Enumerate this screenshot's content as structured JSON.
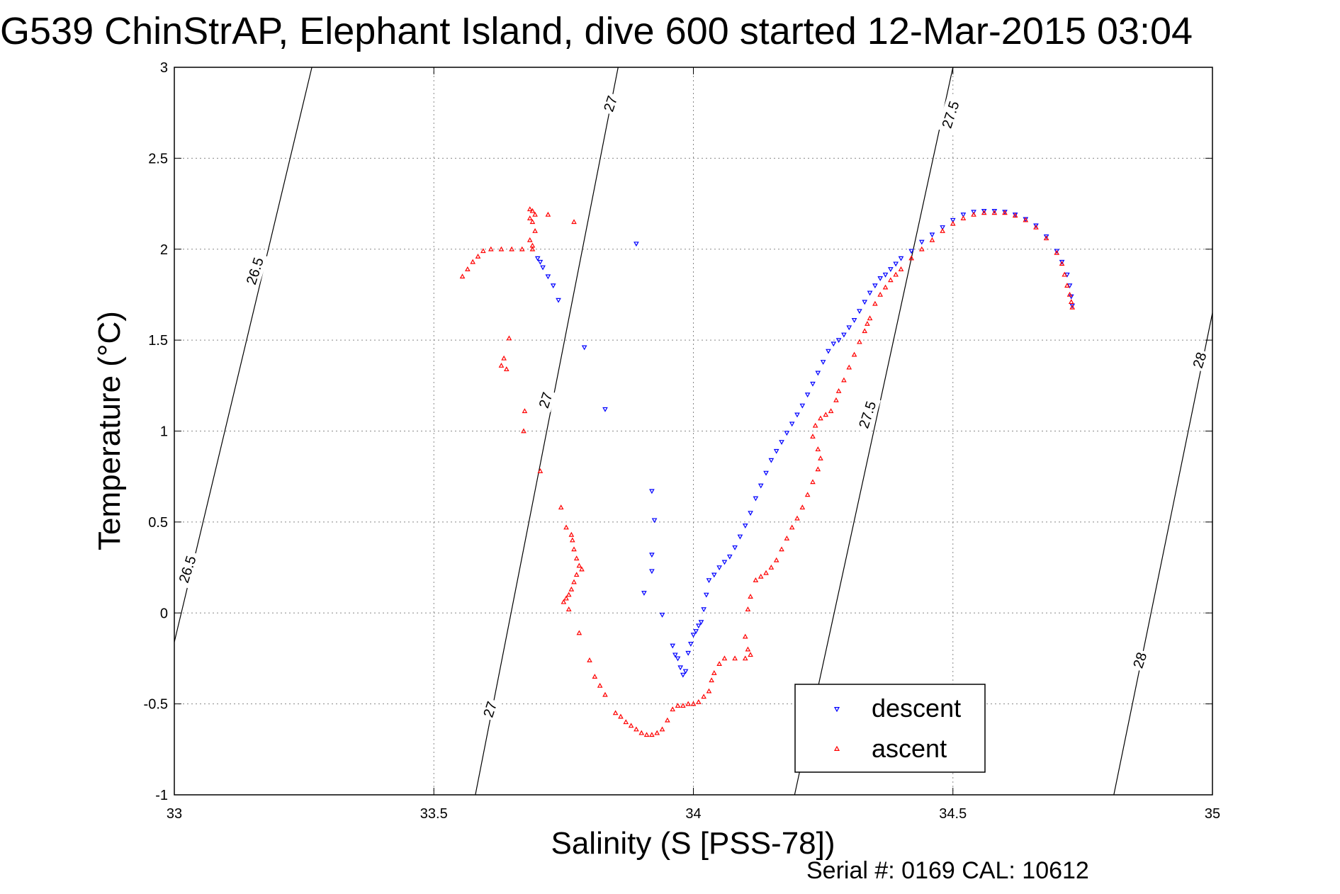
{
  "chart_data": {
    "type": "scatter",
    "title": "G539 ChinStrAP, Elephant Island, dive 600 started 12-Mar-2015 03:04",
    "xlabel": "Salinity (S [PSS-78])",
    "ylabel": "Temperature (°C)",
    "xlim": [
      33,
      35
    ],
    "ylim": [
      -1,
      3
    ],
    "xticks": [
      "33",
      "33.5",
      "34",
      "34.5",
      "35"
    ],
    "yticks": [
      "-1",
      "-0.5",
      "0",
      "0.5",
      "1",
      "1.5",
      "2",
      "2.5",
      "3"
    ],
    "grid": true,
    "legend_position": "bottom-right",
    "density_contours": [
      {
        "level": "26.5",
        "x": [
          33.0,
          33.265
        ],
        "y": [
          -0.16,
          3.0
        ]
      },
      {
        "level": "27",
        "x": [
          33.58,
          33.855
        ],
        "y": [
          -1.0,
          3.0
        ]
      },
      {
        "level": "27.5",
        "x": [
          34.195,
          34.5
        ],
        "y": [
          -1.0,
          3.0
        ]
      },
      {
        "level": "28",
        "x": [
          34.81,
          35.0
        ],
        "y": [
          -1.0,
          1.65
        ]
      }
    ],
    "contour_labels": [
      {
        "text": "26.5",
        "x": 33.155,
        "y": 1.88,
        "angle": -72
      },
      {
        "text": "26.5",
        "x": 33.025,
        "y": 0.24,
        "angle": -72
      },
      {
        "text": "27",
        "x": 33.84,
        "y": 2.8,
        "angle": -72
      },
      {
        "text": "27",
        "x": 33.715,
        "y": 1.17,
        "angle": -72
      },
      {
        "text": "27",
        "x": 33.608,
        "y": -0.53,
        "angle": -72
      },
      {
        "text": "27.5",
        "x": 34.495,
        "y": 2.74,
        "angle": -72
      },
      {
        "text": "27.5",
        "x": 34.335,
        "y": 1.09,
        "angle": -72
      },
      {
        "text": "28",
        "x": 34.975,
        "y": 1.39,
        "angle": -72
      },
      {
        "text": "28",
        "x": 34.86,
        "y": -0.26,
        "angle": -72
      }
    ],
    "series": [
      {
        "name": "descent",
        "color": "#0000ff",
        "marker": "triangle-down",
        "points": [
          [
            33.89,
            2.03
          ],
          [
            33.7,
            1.95
          ],
          [
            33.705,
            1.93
          ],
          [
            33.71,
            1.9
          ],
          [
            33.72,
            1.85
          ],
          [
            33.73,
            1.8
          ],
          [
            33.74,
            1.72
          ],
          [
            33.79,
            1.46
          ],
          [
            33.83,
            1.12
          ],
          [
            33.92,
            0.67
          ],
          [
            33.925,
            0.51
          ],
          [
            33.92,
            0.32
          ],
          [
            33.92,
            0.23
          ],
          [
            33.905,
            0.11
          ],
          [
            33.94,
            -0.01
          ],
          [
            33.96,
            -0.18
          ],
          [
            33.965,
            -0.23
          ],
          [
            33.97,
            -0.25
          ],
          [
            33.975,
            -0.3
          ],
          [
            33.98,
            -0.34
          ],
          [
            33.985,
            -0.32
          ],
          [
            33.99,
            -0.22
          ],
          [
            33.995,
            -0.17
          ],
          [
            34.0,
            -0.12
          ],
          [
            34.005,
            -0.1
          ],
          [
            34.01,
            -0.07
          ],
          [
            34.015,
            -0.05
          ],
          [
            34.02,
            0.02
          ],
          [
            34.025,
            0.1
          ],
          [
            34.03,
            0.18
          ],
          [
            34.04,
            0.21
          ],
          [
            34.05,
            0.25
          ],
          [
            34.06,
            0.28
          ],
          [
            34.07,
            0.31
          ],
          [
            34.08,
            0.36
          ],
          [
            34.09,
            0.42
          ],
          [
            34.1,
            0.48
          ],
          [
            34.11,
            0.55
          ],
          [
            34.12,
            0.63
          ],
          [
            34.13,
            0.7
          ],
          [
            34.14,
            0.77
          ],
          [
            34.15,
            0.84
          ],
          [
            34.16,
            0.89
          ],
          [
            34.17,
            0.94
          ],
          [
            34.18,
            0.99
          ],
          [
            34.19,
            1.04
          ],
          [
            34.2,
            1.09
          ],
          [
            34.21,
            1.14
          ],
          [
            34.22,
            1.2
          ],
          [
            34.23,
            1.26
          ],
          [
            34.24,
            1.32
          ],
          [
            34.25,
            1.38
          ],
          [
            34.26,
            1.44
          ],
          [
            34.27,
            1.48
          ],
          [
            34.28,
            1.5
          ],
          [
            34.29,
            1.53
          ],
          [
            34.3,
            1.57
          ],
          [
            34.31,
            1.61
          ],
          [
            34.32,
            1.66
          ],
          [
            34.33,
            1.71
          ],
          [
            34.34,
            1.76
          ],
          [
            34.35,
            1.8
          ],
          [
            34.36,
            1.84
          ],
          [
            34.37,
            1.86
          ],
          [
            34.38,
            1.89
          ],
          [
            34.39,
            1.92
          ],
          [
            34.4,
            1.95
          ],
          [
            34.42,
            1.99
          ],
          [
            34.44,
            2.04
          ],
          [
            34.46,
            2.08
          ],
          [
            34.48,
            2.12
          ],
          [
            34.5,
            2.16
          ],
          [
            34.52,
            2.19
          ],
          [
            34.54,
            2.205
          ],
          [
            34.56,
            2.21
          ],
          [
            34.58,
            2.21
          ],
          [
            34.6,
            2.205
          ],
          [
            34.62,
            2.19
          ],
          [
            34.64,
            2.165
          ],
          [
            34.66,
            2.13
          ],
          [
            34.68,
            2.07
          ],
          [
            34.7,
            1.99
          ],
          [
            34.71,
            1.93
          ],
          [
            34.72,
            1.86
          ],
          [
            34.725,
            1.8
          ],
          [
            34.728,
            1.74
          ],
          [
            34.73,
            1.69
          ]
        ]
      },
      {
        "name": "ascent",
        "color": "#ff0000",
        "marker": "triangle-up",
        "points": [
          [
            33.685,
            2.22
          ],
          [
            33.69,
            2.21
          ],
          [
            33.695,
            2.19
          ],
          [
            33.685,
            2.17
          ],
          [
            33.69,
            2.15
          ],
          [
            33.695,
            2.1
          ],
          [
            33.685,
            2.05
          ],
          [
            33.69,
            2.02
          ],
          [
            33.72,
            2.19
          ],
          [
            33.77,
            2.15
          ],
          [
            33.69,
            2.0
          ],
          [
            33.67,
            2.0
          ],
          [
            33.65,
            2.0
          ],
          [
            33.63,
            2.0
          ],
          [
            33.61,
            2.0
          ],
          [
            33.595,
            1.99
          ],
          [
            33.585,
            1.96
          ],
          [
            33.575,
            1.93
          ],
          [
            33.565,
            1.89
          ],
          [
            33.555,
            1.85
          ],
          [
            33.645,
            1.51
          ],
          [
            33.635,
            1.4
          ],
          [
            33.63,
            1.36
          ],
          [
            33.64,
            1.34
          ],
          [
            33.675,
            1.11
          ],
          [
            33.673,
            1.0
          ],
          [
            33.705,
            0.78
          ],
          [
            33.745,
            0.58
          ],
          [
            33.755,
            0.47
          ],
          [
            33.765,
            0.43
          ],
          [
            33.767,
            0.4
          ],
          [
            33.77,
            0.35
          ],
          [
            33.775,
            0.3
          ],
          [
            33.78,
            0.26
          ],
          [
            33.785,
            0.24
          ],
          [
            33.775,
            0.21
          ],
          [
            33.77,
            0.17
          ],
          [
            33.765,
            0.13
          ],
          [
            33.76,
            0.1
          ],
          [
            33.755,
            0.08
          ],
          [
            33.75,
            0.06
          ],
          [
            33.76,
            0.02
          ],
          [
            33.78,
            -0.11
          ],
          [
            33.8,
            -0.26
          ],
          [
            33.81,
            -0.35
          ],
          [
            33.82,
            -0.4
          ],
          [
            33.83,
            -0.45
          ],
          [
            33.85,
            -0.55
          ],
          [
            33.86,
            -0.57
          ],
          [
            33.87,
            -0.6
          ],
          [
            33.88,
            -0.62
          ],
          [
            33.89,
            -0.64
          ],
          [
            33.9,
            -0.66
          ],
          [
            33.91,
            -0.67
          ],
          [
            33.92,
            -0.67
          ],
          [
            33.93,
            -0.66
          ],
          [
            33.94,
            -0.64
          ],
          [
            33.95,
            -0.59
          ],
          [
            33.96,
            -0.53
          ],
          [
            33.97,
            -0.51
          ],
          [
            33.98,
            -0.51
          ],
          [
            33.99,
            -0.5
          ],
          [
            34.0,
            -0.5
          ],
          [
            34.01,
            -0.49
          ],
          [
            34.02,
            -0.46
          ],
          [
            34.03,
            -0.43
          ],
          [
            34.035,
            -0.37
          ],
          [
            34.04,
            -0.33
          ],
          [
            34.05,
            -0.28
          ],
          [
            34.06,
            -0.25
          ],
          [
            34.08,
            -0.25
          ],
          [
            34.1,
            -0.25
          ],
          [
            34.11,
            -0.23
          ],
          [
            34.105,
            -0.2
          ],
          [
            34.1,
            -0.13
          ],
          [
            34.105,
            0.02
          ],
          [
            34.11,
            0.09
          ],
          [
            34.12,
            0.18
          ],
          [
            34.13,
            0.2
          ],
          [
            34.14,
            0.22
          ],
          [
            34.15,
            0.25
          ],
          [
            34.16,
            0.29
          ],
          [
            34.17,
            0.35
          ],
          [
            34.18,
            0.41
          ],
          [
            34.19,
            0.47
          ],
          [
            34.2,
            0.52
          ],
          [
            34.21,
            0.58
          ],
          [
            34.22,
            0.65
          ],
          [
            34.23,
            0.72
          ],
          [
            34.24,
            0.79
          ],
          [
            34.245,
            0.85
          ],
          [
            34.24,
            0.9
          ],
          [
            34.23,
            0.97
          ],
          [
            34.235,
            1.03
          ],
          [
            34.245,
            1.07
          ],
          [
            34.255,
            1.09
          ],
          [
            34.265,
            1.11
          ],
          [
            34.275,
            1.17
          ],
          [
            34.28,
            1.22
          ],
          [
            34.29,
            1.28
          ],
          [
            34.3,
            1.35
          ],
          [
            34.31,
            1.42
          ],
          [
            34.32,
            1.49
          ],
          [
            34.33,
            1.55
          ],
          [
            34.335,
            1.59
          ],
          [
            34.34,
            1.62
          ],
          [
            34.35,
            1.7
          ],
          [
            34.36,
            1.75
          ],
          [
            34.37,
            1.79
          ],
          [
            34.38,
            1.83
          ],
          [
            34.39,
            1.86
          ],
          [
            34.4,
            1.89
          ],
          [
            34.42,
            1.95
          ],
          [
            34.44,
            2.0
          ],
          [
            34.46,
            2.05
          ],
          [
            34.48,
            2.1
          ],
          [
            34.5,
            2.14
          ],
          [
            34.52,
            2.17
          ],
          [
            34.54,
            2.19
          ],
          [
            34.56,
            2.2
          ],
          [
            34.58,
            2.2
          ],
          [
            34.6,
            2.2
          ],
          [
            34.62,
            2.185
          ],
          [
            34.64,
            2.16
          ],
          [
            34.66,
            2.12
          ],
          [
            34.68,
            2.06
          ],
          [
            34.7,
            1.98
          ],
          [
            34.71,
            1.92
          ],
          [
            34.715,
            1.86
          ],
          [
            34.72,
            1.8
          ],
          [
            34.725,
            1.75
          ],
          [
            34.728,
            1.71
          ],
          [
            34.73,
            1.68
          ]
        ]
      }
    ]
  },
  "footer": {
    "serial_text": "Serial #: 0169 CAL: 10612"
  }
}
